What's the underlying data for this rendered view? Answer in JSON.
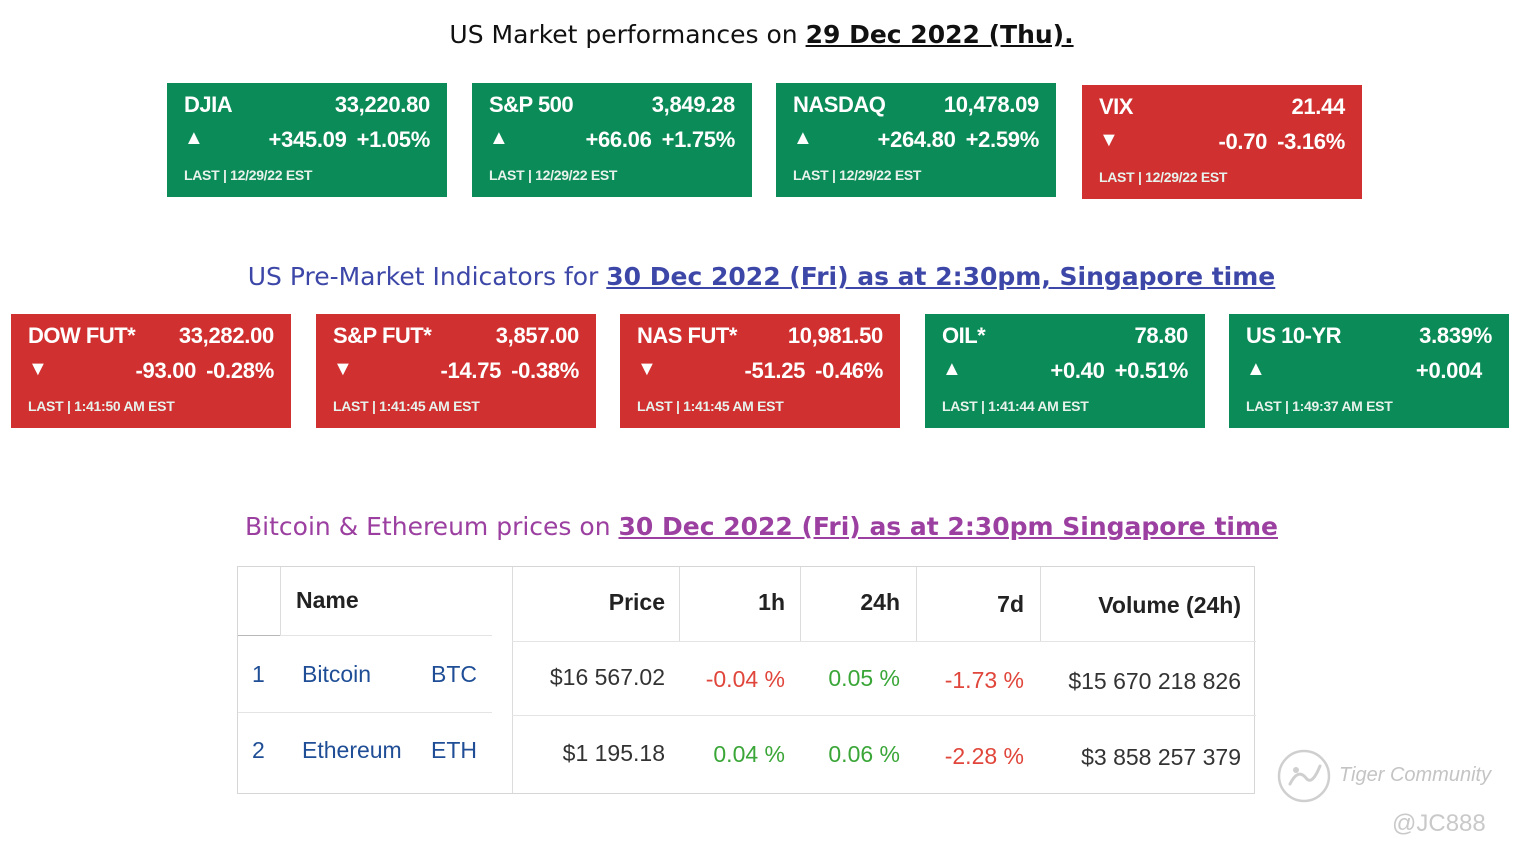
{
  "headings": {
    "us_market_prefix": "US Market performances on ",
    "us_market_date": "29 Dec 2022 (Thu).",
    "premarket_prefix": "US Pre-Market Indicators for ",
    "premarket_date": "30 Dec 2022 (Fri) as at 2:30pm, Singapore time",
    "crypto_prefix": "Bitcoin & Ethereum prices on ",
    "crypto_date": "30 Dec 2022 (Fri) as at 2:30pm Singapore time"
  },
  "colors": {
    "up": "#0b8b57",
    "down": "#d0302f"
  },
  "market_tiles": [
    {
      "name": "DJIA",
      "value": "33,220.80",
      "arrow": "▲",
      "change": "+345.09",
      "pct": "+1.05%",
      "last": "LAST | 12/29/22 EST",
      "dir": "up"
    },
    {
      "name": "S&P 500",
      "value": "3,849.28",
      "arrow": "▲",
      "change": "+66.06",
      "pct": "+1.75%",
      "last": "LAST | 12/29/22 EST",
      "dir": "up"
    },
    {
      "name": "NASDAQ",
      "value": "10,478.09",
      "arrow": "▲",
      "change": "+264.80",
      "pct": "+2.59%",
      "last": "LAST | 12/29/22 EST",
      "dir": "up"
    },
    {
      "name": "VIX",
      "value": "21.44",
      "arrow": "▼",
      "change": "-0.70",
      "pct": "-3.16%",
      "last": "LAST | 12/29/22 EST",
      "dir": "down"
    }
  ],
  "premarket_tiles": [
    {
      "name": "DOW FUT*",
      "value": "33,282.00",
      "arrow": "▼",
      "change": "-93.00",
      "pct": "-0.28%",
      "last": "LAST | 1:41:50 AM EST",
      "dir": "down"
    },
    {
      "name": "S&P FUT*",
      "value": "3,857.00",
      "arrow": "▼",
      "change": "-14.75",
      "pct": "-0.38%",
      "last": "LAST | 1:41:45 AM EST",
      "dir": "down"
    },
    {
      "name": "NAS FUT*",
      "value": "10,981.50",
      "arrow": "▼",
      "change": "-51.25",
      "pct": "-0.46%",
      "last": "LAST | 1:41:45 AM EST",
      "dir": "down"
    },
    {
      "name": "OIL*",
      "value": "78.80",
      "arrow": "▲",
      "change": "+0.40",
      "pct": "+0.51%",
      "last": "LAST | 1:41:44 AM EST",
      "dir": "up"
    },
    {
      "name": "US 10-YR",
      "value": "3.839%",
      "arrow": "▲",
      "change": "+0.004",
      "pct": "",
      "last": "LAST | 1:49:37 AM EST",
      "dir": "up"
    }
  ],
  "crypto_table": {
    "headers": {
      "name": "Name",
      "price": "Price",
      "h1": "1h",
      "h24": "24h",
      "d7": "7d",
      "volume": "Volume (24h)"
    },
    "rows": [
      {
        "rank": "1",
        "name": "Bitcoin",
        "symbol": "BTC",
        "price": "$16 567.02",
        "h1": "-0.04 %",
        "h24": "0.05 %",
        "d7": "-1.73 %",
        "volume": "$15 670 218 826"
      },
      {
        "rank": "2",
        "name": "Ethereum",
        "symbol": "ETH",
        "price": "$1 195.18",
        "h1": "0.04 %",
        "h24": "0.06 %",
        "d7": "-2.28 %",
        "volume": "$3 858 257 379"
      }
    ]
  },
  "watermark": {
    "brand": "Tiger Community",
    "user": "@JC888"
  }
}
